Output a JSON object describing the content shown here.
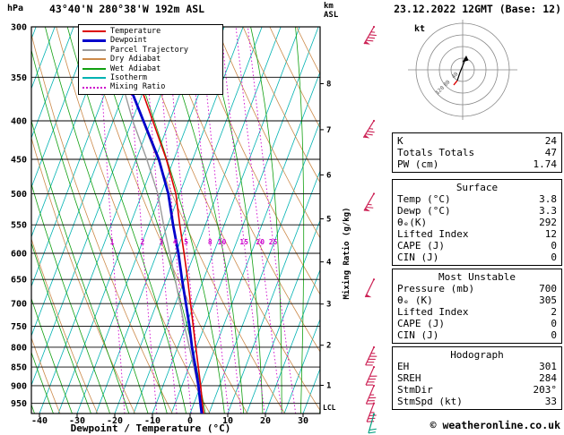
{
  "header": {
    "pressure_unit": "hPa",
    "title": "43°40'N 280°38'W 192m ASL",
    "altitude_unit_line1": "km",
    "altitude_unit_line2": "ASL",
    "datetime": "23.12.2022 12GMT (Base: 12)"
  },
  "axes": {
    "x_label": "Dewpoint / Temperature (°C)",
    "mixing_ratio_axis_label": "Mixing Ratio (g/kg)",
    "pressure_ticks": [
      300,
      350,
      400,
      450,
      500,
      550,
      600,
      650,
      700,
      750,
      800,
      850,
      900,
      950
    ],
    "temp_ticks": [
      -40,
      -30,
      -20,
      -10,
      0,
      10,
      20,
      30
    ],
    "km_ticks": [
      1,
      2,
      3,
      4,
      5,
      6,
      7,
      8
    ],
    "lcl_label": "LCL"
  },
  "legend": [
    {
      "label": "Temperature",
      "color": "#dd0000"
    },
    {
      "label": "Dewpoint",
      "color": "#0000cc"
    },
    {
      "label": "Parcel Trajectory",
      "color": "#9a9a9a"
    },
    {
      "label": "Dry Adiabat",
      "color": "#cc8a4a"
    },
    {
      "label": "Wet Adiabat",
      "color": "#11a011"
    },
    {
      "label": "Isotherm",
      "color": "#00b2b2"
    },
    {
      "label": "Mixing Ratio",
      "color": "#cc00cc"
    }
  ],
  "hodograph_panel": {
    "unit": "kt",
    "ring_labels": [
      "40",
      "80",
      "120"
    ]
  },
  "stats": {
    "indices": {
      "rows": [
        {
          "label": "K",
          "value": "24"
        },
        {
          "label": "Totals Totals",
          "value": "47"
        },
        {
          "label": "PW (cm)",
          "value": "1.74"
        }
      ]
    },
    "surface": {
      "title": "Surface",
      "rows": [
        {
          "label": "Temp (°C)",
          "value": "3.8"
        },
        {
          "label": "Dewp (°C)",
          "value": "3.3"
        },
        {
          "label": "θₑ(K)",
          "value": "292"
        },
        {
          "label": "Lifted Index",
          "value": "12"
        },
        {
          "label": "CAPE (J)",
          "value": "0"
        },
        {
          "label": "CIN (J)",
          "value": "0"
        }
      ]
    },
    "most_unstable": {
      "title": "Most Unstable",
      "rows": [
        {
          "label": "Pressure (mb)",
          "value": "700"
        },
        {
          "label": "θₑ (K)",
          "value": "305"
        },
        {
          "label": "Lifted Index",
          "value": "2"
        },
        {
          "label": "CAPE (J)",
          "value": "0"
        },
        {
          "label": "CIN (J)",
          "value": "0"
        }
      ]
    },
    "hodograph": {
      "title": "Hodograph",
      "rows": [
        {
          "label": "EH",
          "value": "301"
        },
        {
          "label": "SREH",
          "value": "284"
        },
        {
          "label": "StmDir",
          "value": "203°"
        },
        {
          "label": "StmSpd (kt)",
          "value": "33"
        }
      ]
    }
  },
  "footer": {
    "copyright": "© weatheronline.co.uk"
  },
  "chart_data": {
    "type": "line",
    "title": "Skew-T log-P sounding 43°40'N 280°38'W 192m ASL 23.12.2022 12GMT",
    "x_axis": {
      "label": "Dewpoint / Temperature (°C)",
      "range": [
        -40,
        38
      ]
    },
    "y_axis": {
      "label": "hPa",
      "range": [
        300,
        980
      ],
      "scale": "log"
    },
    "pressure_levels_hpa": [
      985,
      950,
      900,
      850,
      800,
      750,
      700,
      650,
      600,
      550,
      500,
      450,
      400,
      350,
      300
    ],
    "series": [
      {
        "name": "Temperature",
        "color": "#dd0000",
        "values_c": [
          3.8,
          2.2,
          0.0,
          -2.5,
          -5.2,
          -8.0,
          -11.0,
          -14.2,
          -17.8,
          -21.8,
          -26.0,
          -32.0,
          -39.5,
          -48.0,
          -60.0
        ]
      },
      {
        "name": "Dewpoint",
        "color": "#0000cc",
        "values_c": [
          3.3,
          1.7,
          -0.6,
          -3.3,
          -6.2,
          -9.0,
          -12.2,
          -15.7,
          -19.3,
          -23.6,
          -28.0,
          -34.0,
          -42.0,
          -51.0,
          -63.0
        ]
      },
      {
        "name": "Parcel Trajectory",
        "color": "#9a9a9a",
        "values_c": [
          3.8,
          2.0,
          -0.7,
          -3.7,
          -6.9,
          -10.3,
          -13.8,
          -17.5,
          -21.6,
          -26.1,
          -30.8,
          -37.2,
          -44.8,
          -52.5,
          -63.0
        ]
      }
    ],
    "mixing_ratio_lines_g_kg": [
      1,
      2,
      3,
      4,
      5,
      8,
      10,
      15,
      20,
      25
    ],
    "isotherm_step_c": 5,
    "wind_barbs": [
      {
        "pressure_hpa": 300,
        "speed_kt": 85,
        "from_deg": 210
      },
      {
        "pressure_hpa": 400,
        "speed_kt": 75,
        "from_deg": 212
      },
      {
        "pressure_hpa": 500,
        "speed_kt": 65,
        "from_deg": 210
      },
      {
        "pressure_hpa": 650,
        "speed_kt": 50,
        "from_deg": 206
      },
      {
        "pressure_hpa": 800,
        "speed_kt": 45,
        "from_deg": 205
      },
      {
        "pressure_hpa": 850,
        "speed_kt": 40,
        "from_deg": 204
      },
      {
        "pressure_hpa": 900,
        "speed_kt": 36,
        "from_deg": 203
      },
      {
        "pressure_hpa": 950,
        "speed_kt": 33,
        "from_deg": 201
      },
      {
        "pressure_hpa": 982,
        "speed_kt": 18,
        "from_deg": 196
      }
    ],
    "barb_color": "#cc2255",
    "surface_barb_color": "#00a080",
    "surface": {
      "temp_c": 3.8,
      "dewp_c": 3.3
    },
    "lcl_pressure_hpa": 975
  }
}
